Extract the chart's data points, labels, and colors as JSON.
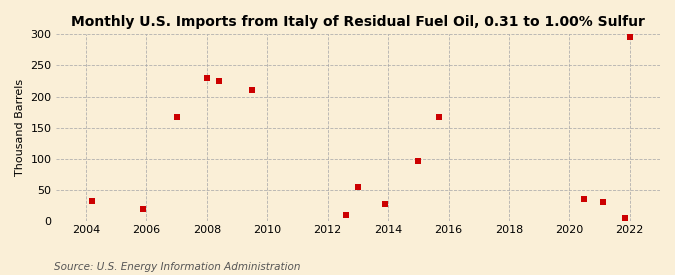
{
  "title": "Monthly U.S. Imports from Italy of Residual Fuel Oil, 0.31 to 1.00% Sulfur",
  "ylabel": "Thousand Barrels",
  "source": "Source: U.S. Energy Information Administration",
  "background_color": "#faefd7",
  "dot_color": "#cc0000",
  "xlim": [
    2003.0,
    2023.0
  ],
  "ylim": [
    0,
    300
  ],
  "yticks": [
    0,
    50,
    100,
    150,
    200,
    250,
    300
  ],
  "xticks": [
    2004,
    2006,
    2008,
    2010,
    2012,
    2014,
    2016,
    2018,
    2020,
    2022
  ],
  "data_x": [
    2004.2,
    2005.9,
    2007.0,
    2008.0,
    2008.4,
    2009.5,
    2012.6,
    2013.0,
    2013.9,
    2015.0,
    2015.7,
    2020.5,
    2021.1,
    2021.85,
    2022.0
  ],
  "data_y": [
    32,
    20,
    167,
    230,
    225,
    210,
    10,
    54,
    27,
    97,
    168,
    35,
    31,
    5,
    295
  ],
  "title_fontsize": 10,
  "label_fontsize": 8,
  "tick_fontsize": 8,
  "source_fontsize": 7.5
}
